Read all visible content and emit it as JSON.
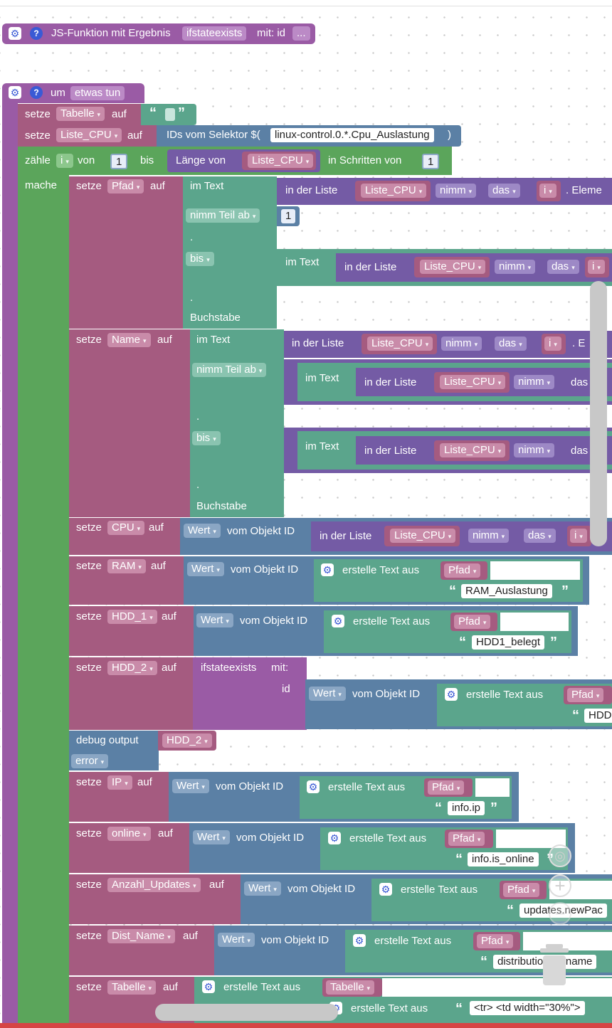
{
  "func_block": {
    "title": "JS-Funktion mit Ergebnis",
    "name": "ifstateexists",
    "mit": "mit: id",
    "dots": "..."
  },
  "proc_block": {
    "title": "um",
    "name": "etwas tun"
  },
  "blocks": {
    "set1": {
      "verb": "setze",
      "var": "Tabelle",
      "auf": "auf"
    },
    "set2": {
      "verb": "setze",
      "var": "Liste_CPU",
      "auf": "auf",
      "selector_label": "IDs vom Selektor $(",
      "selector": "linux-control.0.*.Cpu_Auslastung",
      "close": ")"
    },
    "count": {
      "verb": "zähle",
      "var": "i",
      "von": "von",
      "from": "1",
      "bis": "bis",
      "len_label": "Länge von",
      "list": "Liste_CPU",
      "step_label": "in Schritten von",
      "step": "1"
    },
    "mache": "mache",
    "pfad": {
      "verb": "setze",
      "var": "Pfad",
      "auf": "auf",
      "im_text": "im Text",
      "in_liste": "in der Liste",
      "list": "Liste_CPU",
      "nimm": "nimm",
      "das": "das",
      "i": "i",
      "elem": ". Eleme",
      "nimm_teil": "nimm Teil ab",
      "one": "1",
      "dot": ".",
      "bis": "bis",
      "im_text2": "im Text",
      "in_liste2": "in der Liste",
      "list2": "Liste_CPU",
      "nimm2": "nimm",
      "das2": "das",
      "i2": "i",
      "buchstabe": "Buchstabe"
    },
    "name": {
      "verb": "setze",
      "var": "Name",
      "auf": "auf",
      "im_text": "im Text",
      "in_liste": "in der Liste",
      "list": "Liste_CPU",
      "nimm": "nimm",
      "das": "das",
      "i": "i",
      "elem": ". E",
      "nimm_teil": "nimm Teil ab",
      "im_text2": "im Text",
      "in_liste2": "in der Liste",
      "list2": "Liste_CPU",
      "nimm2": "nimm",
      "das2": "das",
      "dot": ".",
      "bis": "bis",
      "im_text3": "im Text",
      "in_liste3": "in der Liste",
      "list3": "Liste_CPU",
      "nimm3": "nimm",
      "das3": "das",
      "dot2": ".",
      "buchstabe": "Buchstabe"
    },
    "cpu": {
      "verb": "setze",
      "var": "CPU",
      "auf": "auf",
      "wert": "Wert",
      "vom": "vom Objekt ID",
      "in_liste": "in der Liste",
      "list": "Liste_CPU",
      "nimm": "nimm",
      "das": "das",
      "i": "i"
    },
    "ram": {
      "verb": "setze",
      "var": "RAM",
      "auf": "auf",
      "wert": "Wert",
      "vom": "vom Objekt ID",
      "erstelle": "erstelle Text aus",
      "pfad": "Pfad",
      "str": "RAM_Auslastung"
    },
    "hdd1": {
      "verb": "setze",
      "var": "HDD_1",
      "auf": "auf",
      "wert": "Wert",
      "vom": "vom Objekt ID",
      "erstelle": "erstelle Text aus",
      "pfad": "Pfad",
      "str": "HDD1_belegt"
    },
    "hdd2": {
      "verb": "setze",
      "var": "HDD_2",
      "auf": "auf",
      "func": "ifstateexists",
      "mit": "mit:",
      "id": "id",
      "wert": "Wert",
      "vom": "vom Objekt ID",
      "erstelle": "erstelle Text aus",
      "pfad": "Pfad",
      "str": "HDD"
    },
    "debug": {
      "label": "debug output",
      "var": "HDD_2",
      "level": "error"
    },
    "ip": {
      "verb": "setze",
      "var": "IP",
      "auf": "auf",
      "wert": "Wert",
      "vom": "vom Objekt ID",
      "erstelle": "erstelle Text aus",
      "pfad": "Pfad",
      "str": "info.ip"
    },
    "online": {
      "verb": "setze",
      "var": "online",
      "auf": "auf",
      "wert": "Wert",
      "vom": "vom Objekt ID",
      "erstelle": "erstelle Text aus",
      "pfad": "Pfad",
      "str": "info.is_online"
    },
    "updates": {
      "verb": "setze",
      "var": "Anzahl_Updates",
      "auf": "auf",
      "wert": "Wert",
      "vom": "vom Objekt ID",
      "erstelle": "erstelle Text aus",
      "pfad": "Pfad",
      "str": "updates.newPac"
    },
    "dist": {
      "verb": "setze",
      "var": "Dist_Name",
      "auf": "auf",
      "wert": "Wert",
      "vom": "vom Objekt ID",
      "erstelle": "erstelle Text aus",
      "pfad": "Pfad",
      "str": "distribution.fullname"
    },
    "tabelle": {
      "verb": "setze",
      "var": "Tabelle",
      "auf": "auf",
      "erstelle": "erstelle Text aus",
      "var2": "Tabelle",
      "erstelle2": "erstelle Text aus",
      "str": "<tr>    <td width=\"30%\">"
    }
  },
  "icons": {
    "gear": "gear-icon",
    "help": "help-icon",
    "zoom_in": "plus-icon",
    "zoom_reset": "target-icon",
    "trash": "trash-icon"
  },
  "colors": {
    "procedure": "#9a5ba5",
    "variables": "#a55b80",
    "loops": "#5ba55b",
    "text": "#5ba58c",
    "objects": "#5b80a5",
    "lists": "#745ba5"
  }
}
